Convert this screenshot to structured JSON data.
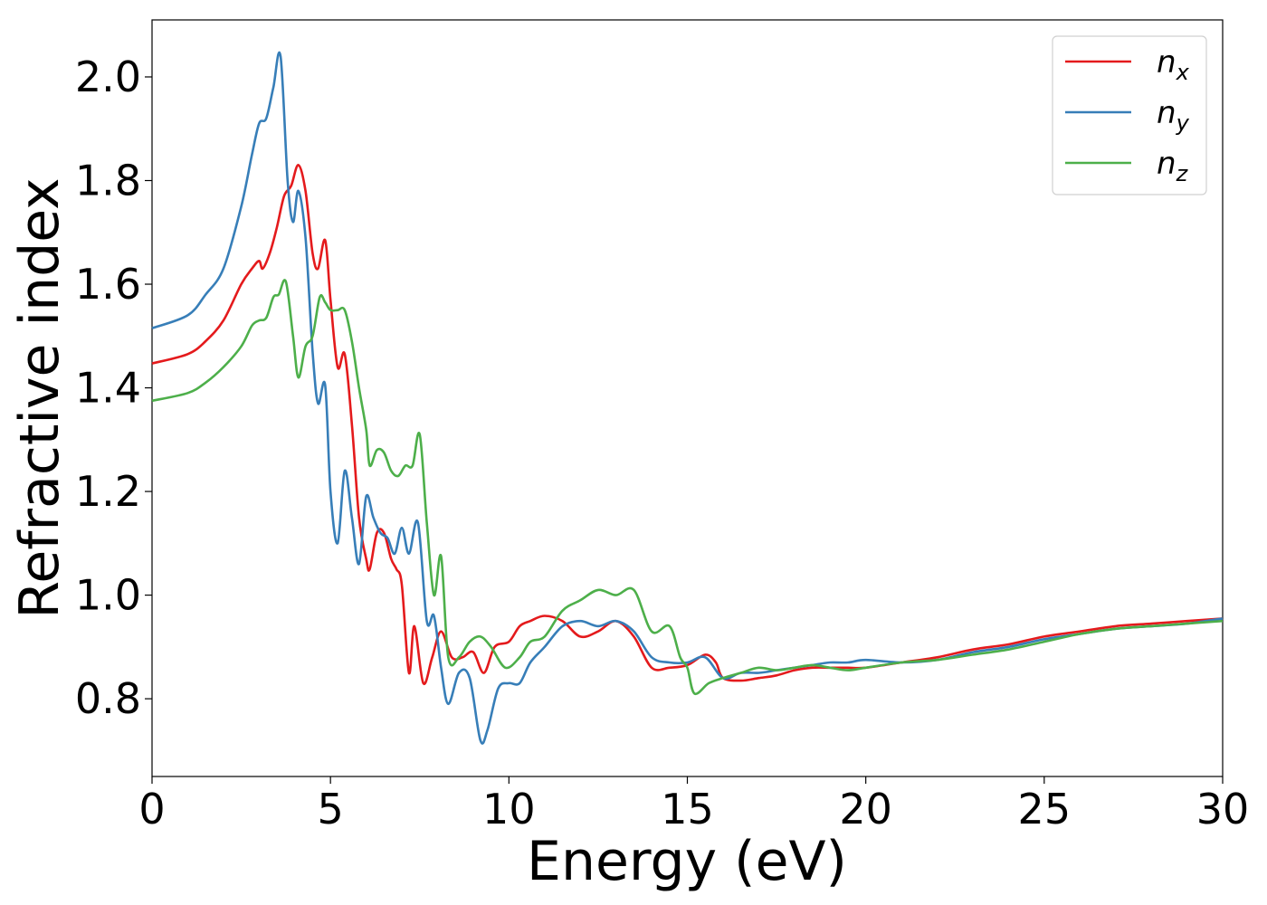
{
  "chart_data": {
    "type": "line",
    "title": "",
    "xlabel": "Energy (eV)",
    "ylabel": "Refractive index",
    "xlim": [
      0,
      30
    ],
    "ylim": [
      0.65,
      2.11
    ],
    "xticks": [
      0,
      5,
      10,
      15,
      20,
      25,
      30
    ],
    "xtick_labels": [
      "0",
      "5",
      "10",
      "15",
      "20",
      "25",
      "30"
    ],
    "yticks": [
      0.8,
      1.0,
      1.2,
      1.4,
      1.6,
      1.8,
      2.0
    ],
    "ytick_labels": [
      "0.8",
      "1.0",
      "1.2",
      "1.4",
      "1.6",
      "1.8",
      "2.0"
    ],
    "grid": false,
    "legend_position": "top-right",
    "series": [
      {
        "name": "n",
        "subscript": "x",
        "color": "#e41a1c",
        "x": [
          0,
          1,
          1.5,
          2,
          2.5,
          2.8,
          3.0,
          3.1,
          3.3,
          3.5,
          3.7,
          3.9,
          4.1,
          4.3,
          4.5,
          4.65,
          4.85,
          5.0,
          5.2,
          5.4,
          5.6,
          5.8,
          6.0,
          6.1,
          6.3,
          6.5,
          6.7,
          6.85,
          7.0,
          7.2,
          7.35,
          7.6,
          7.85,
          8.1,
          8.4,
          8.7,
          9.0,
          9.3,
          9.6,
          10.0,
          10.3,
          10.6,
          11.0,
          11.5,
          12.0,
          12.5,
          13.0,
          13.5,
          14.0,
          14.5,
          15.0,
          15.5,
          15.8,
          16.0,
          16.5,
          17.0,
          17.5,
          18.0,
          18.5,
          19.0,
          19.5,
          20.0,
          21.0,
          22.0,
          23.0,
          24.0,
          25.0,
          26.0,
          27.0,
          28.0,
          29.0,
          30.0
        ],
        "y": [
          1.447,
          1.465,
          1.49,
          1.53,
          1.6,
          1.63,
          1.645,
          1.63,
          1.66,
          1.71,
          1.77,
          1.79,
          1.83,
          1.78,
          1.66,
          1.63,
          1.685,
          1.57,
          1.44,
          1.465,
          1.33,
          1.15,
          1.07,
          1.05,
          1.12,
          1.12,
          1.07,
          1.05,
          1.02,
          0.85,
          0.94,
          0.83,
          0.88,
          0.93,
          0.88,
          0.88,
          0.89,
          0.85,
          0.9,
          0.91,
          0.94,
          0.95,
          0.96,
          0.95,
          0.92,
          0.93,
          0.95,
          0.92,
          0.86,
          0.86,
          0.865,
          0.885,
          0.87,
          0.84,
          0.835,
          0.84,
          0.845,
          0.855,
          0.86,
          0.86,
          0.86,
          0.86,
          0.87,
          0.88,
          0.895,
          0.905,
          0.92,
          0.93,
          0.94,
          0.945,
          0.95,
          0.955
        ]
      },
      {
        "name": "n",
        "subscript": "y",
        "color": "#377eb8",
        "x": [
          0,
          1,
          1.5,
          2,
          2.5,
          2.8,
          3.0,
          3.2,
          3.4,
          3.6,
          3.8,
          3.95,
          4.1,
          4.3,
          4.5,
          4.65,
          4.85,
          5.0,
          5.2,
          5.4,
          5.6,
          5.8,
          6.0,
          6.2,
          6.4,
          6.6,
          6.8,
          7.0,
          7.2,
          7.45,
          7.7,
          7.9,
          8.1,
          8.3,
          8.6,
          8.9,
          9.2,
          9.4,
          9.7,
          10.0,
          10.3,
          10.6,
          11.0,
          11.5,
          12.0,
          12.5,
          13.0,
          13.5,
          14.0,
          14.5,
          15.0,
          15.5,
          16.0,
          16.5,
          17.0,
          17.5,
          18.0,
          18.5,
          19.0,
          19.5,
          20.0,
          21.0,
          22.0,
          23.0,
          24.0,
          25.0,
          26.0,
          27.0,
          28.0,
          29.0,
          30.0
        ],
        "y": [
          1.515,
          1.54,
          1.58,
          1.63,
          1.75,
          1.85,
          1.91,
          1.92,
          1.98,
          2.04,
          1.8,
          1.72,
          1.78,
          1.69,
          1.47,
          1.37,
          1.405,
          1.2,
          1.1,
          1.24,
          1.15,
          1.06,
          1.19,
          1.15,
          1.12,
          1.11,
          1.08,
          1.13,
          1.08,
          1.14,
          0.95,
          0.96,
          0.86,
          0.79,
          0.85,
          0.84,
          0.72,
          0.74,
          0.82,
          0.83,
          0.83,
          0.87,
          0.9,
          0.94,
          0.95,
          0.94,
          0.95,
          0.93,
          0.88,
          0.87,
          0.87,
          0.88,
          0.84,
          0.85,
          0.85,
          0.855,
          0.86,
          0.865,
          0.87,
          0.87,
          0.875,
          0.87,
          0.875,
          0.89,
          0.9,
          0.915,
          0.925,
          0.935,
          0.94,
          0.945,
          0.955
        ]
      },
      {
        "name": "n",
        "subscript": "z",
        "color": "#4daf4a",
        "x": [
          0,
          1,
          1.5,
          2,
          2.5,
          2.8,
          3.0,
          3.2,
          3.4,
          3.55,
          3.75,
          3.95,
          4.1,
          4.3,
          4.5,
          4.7,
          4.85,
          5.0,
          5.2,
          5.4,
          5.6,
          5.8,
          6.0,
          6.1,
          6.3,
          6.5,
          6.7,
          6.9,
          7.1,
          7.3,
          7.5,
          7.7,
          7.9,
          8.1,
          8.3,
          8.6,
          8.9,
          9.2,
          9.5,
          9.9,
          10.3,
          10.6,
          11.0,
          11.5,
          12.0,
          12.5,
          13.0,
          13.5,
          14.0,
          14.5,
          14.8,
          15.0,
          15.2,
          15.6,
          16.0,
          16.5,
          17.0,
          17.5,
          18.0,
          18.5,
          19.0,
          19.5,
          20.0,
          21.0,
          22.0,
          23.0,
          24.0,
          25.0,
          26.0,
          27.0,
          28.0,
          29.0,
          30.0
        ],
        "y": [
          1.375,
          1.39,
          1.41,
          1.44,
          1.48,
          1.52,
          1.53,
          1.535,
          1.575,
          1.58,
          1.605,
          1.5,
          1.42,
          1.48,
          1.5,
          1.575,
          1.565,
          1.55,
          1.55,
          1.55,
          1.49,
          1.4,
          1.32,
          1.25,
          1.28,
          1.275,
          1.24,
          1.23,
          1.25,
          1.25,
          1.31,
          1.14,
          1.0,
          1.075,
          0.88,
          0.88,
          0.91,
          0.92,
          0.9,
          0.86,
          0.88,
          0.91,
          0.92,
          0.97,
          0.99,
          1.01,
          1.0,
          1.01,
          0.93,
          0.94,
          0.88,
          0.86,
          0.81,
          0.83,
          0.84,
          0.85,
          0.86,
          0.855,
          0.86,
          0.865,
          0.86,
          0.855,
          0.86,
          0.87,
          0.875,
          0.885,
          0.895,
          0.91,
          0.925,
          0.935,
          0.94,
          0.945,
          0.95
        ]
      }
    ]
  }
}
